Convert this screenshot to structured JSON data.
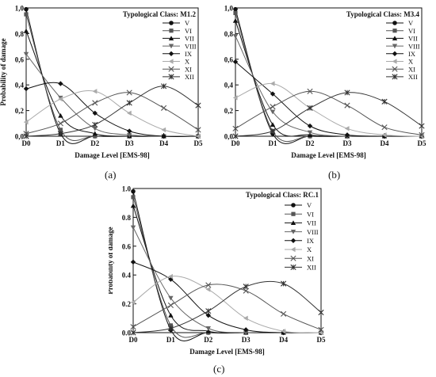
{
  "chart_data": [
    {
      "type": "line",
      "title": "Typological Class: M1.2",
      "caption": "(a)",
      "xlabel": "Damage Level [EMS-98]",
      "ylabel": "Probability of damage",
      "categories": [
        "D0",
        "D1",
        "D2",
        "D3",
        "D4",
        "D5"
      ],
      "yticks": [
        "0,0",
        "0,2",
        "0,4",
        "0,6",
        "0,8",
        "1,0"
      ],
      "ylim": [
        0,
        1.0
      ],
      "legend_position": "top-right",
      "series": [
        {
          "name": "V",
          "marker": "circle",
          "values": [
            0.99,
            0.02,
            0.0,
            0.0,
            0.0,
            0.0
          ]
        },
        {
          "name": "VI",
          "marker": "square",
          "values": [
            0.95,
            0.05,
            0.0,
            0.0,
            0.0,
            0.0
          ]
        },
        {
          "name": "VII",
          "marker": "triangle",
          "values": [
            0.82,
            0.16,
            0.02,
            0.0,
            0.0,
            0.0
          ]
        },
        {
          "name": "VIII",
          "marker": "tri-down",
          "values": [
            0.64,
            0.3,
            0.06,
            0.01,
            0.0,
            0.0
          ]
        },
        {
          "name": "IX",
          "marker": "diamond",
          "values": [
            0.37,
            0.41,
            0.18,
            0.04,
            0.0,
            0.0
          ]
        },
        {
          "name": "X",
          "marker": "tri-left",
          "values": [
            0.11,
            0.29,
            0.35,
            0.18,
            0.05,
            0.0
          ]
        },
        {
          "name": "XI",
          "marker": "x",
          "values": [
            0.02,
            0.1,
            0.26,
            0.34,
            0.22,
            0.05
          ]
        },
        {
          "name": "XII",
          "marker": "asterisk",
          "values": [
            0.0,
            0.02,
            0.09,
            0.26,
            0.39,
            0.24
          ]
        }
      ]
    },
    {
      "type": "line",
      "title": "Typological Class: M3.4",
      "caption": "(b)",
      "xlabel": "Damage Level [EMS-98]",
      "ylabel": "Probability of damage",
      "categories": [
        "D0",
        "D1",
        "D2",
        "D3",
        "D4",
        "D5"
      ],
      "yticks": [
        "0,0",
        "0,2",
        "0,4",
        "0,6",
        "0,8",
        "1,0"
      ],
      "ylim": [
        0,
        1.0
      ],
      "legend_position": "top-right",
      "series": [
        {
          "name": "V",
          "marker": "circle",
          "values": [
            0.99,
            0.02,
            0.0,
            0.0,
            0.0,
            0.0
          ]
        },
        {
          "name": "VI",
          "marker": "square",
          "values": [
            0.96,
            0.04,
            0.0,
            0.0,
            0.0,
            0.0
          ]
        },
        {
          "name": "VII",
          "marker": "triangle",
          "values": [
            0.9,
            0.09,
            0.01,
            0.0,
            0.0,
            0.0
          ]
        },
        {
          "name": "VIII",
          "marker": "tri-down",
          "values": [
            0.78,
            0.19,
            0.03,
            0.0,
            0.0,
            0.0
          ]
        },
        {
          "name": "IX",
          "marker": "diamond",
          "values": [
            0.58,
            0.33,
            0.08,
            0.01,
            0.0,
            0.0
          ]
        },
        {
          "name": "X",
          "marker": "tri-left",
          "values": [
            0.3,
            0.41,
            0.22,
            0.06,
            0.01,
            0.0
          ]
        },
        {
          "name": "XI",
          "marker": "x",
          "values": [
            0.06,
            0.23,
            0.35,
            0.24,
            0.07,
            0.01
          ]
        },
        {
          "name": "XII",
          "marker": "asterisk",
          "values": [
            0.0,
            0.04,
            0.22,
            0.34,
            0.27,
            0.08
          ]
        }
      ]
    },
    {
      "type": "line",
      "title": "Typological Class: RC.1",
      "caption": "(c)",
      "xlabel": "Damage Level [EMS-98]",
      "ylabel": "Probability of damage",
      "categories": [
        "D0",
        "D1",
        "D2",
        "D3",
        "D4",
        "D5"
      ],
      "yticks": [
        "0.0",
        "0.2",
        "0.4",
        "0.6",
        "0.8",
        "1.0"
      ],
      "ylim": [
        0,
        1.0
      ],
      "legend_position": "top-right",
      "series": [
        {
          "name": "V",
          "marker": "circle",
          "values": [
            0.98,
            0.02,
            0.0,
            0.0,
            0.0,
            0.0
          ]
        },
        {
          "name": "VI",
          "marker": "square",
          "values": [
            0.94,
            0.05,
            0.0,
            0.0,
            0.0,
            0.0
          ]
        },
        {
          "name": "VII",
          "marker": "triangle",
          "values": [
            0.88,
            0.12,
            0.01,
            0.0,
            0.0,
            0.0
          ]
        },
        {
          "name": "VIII",
          "marker": "tri-down",
          "values": [
            0.73,
            0.24,
            0.03,
            0.0,
            0.0,
            0.0
          ]
        },
        {
          "name": "IX",
          "marker": "diamond",
          "values": [
            0.49,
            0.37,
            0.12,
            0.02,
            0.0,
            0.0
          ]
        },
        {
          "name": "X",
          "marker": "tri-left",
          "values": [
            0.21,
            0.39,
            0.3,
            0.1,
            0.01,
            0.0
          ]
        },
        {
          "name": "XI",
          "marker": "x",
          "values": [
            0.04,
            0.19,
            0.33,
            0.29,
            0.13,
            0.02
          ]
        },
        {
          "name": "XII",
          "marker": "asterisk",
          "values": [
            0.0,
            0.03,
            0.15,
            0.32,
            0.34,
            0.14
          ]
        }
      ]
    }
  ]
}
